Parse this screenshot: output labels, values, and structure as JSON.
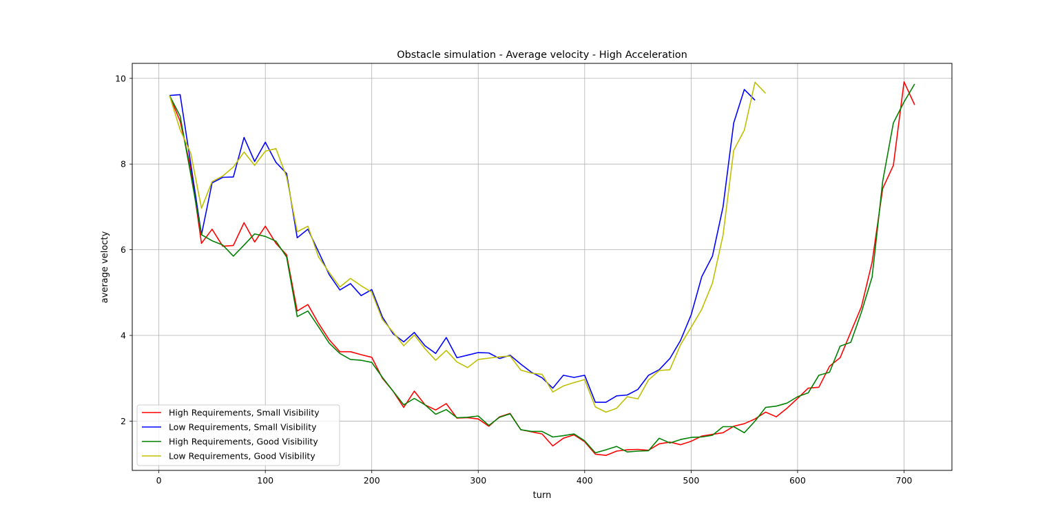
{
  "chart_data": {
    "type": "line",
    "title": "Obstacle simulation - Average velocity - High Acceleration",
    "xlabel": "turn",
    "ylabel": "average velocty",
    "xlim": [
      -25,
      745
    ],
    "ylim": [
      0.85,
      10.35
    ],
    "xticks": [
      0,
      100,
      200,
      300,
      400,
      500,
      600,
      700
    ],
    "yticks": [
      2,
      4,
      6,
      8,
      10
    ],
    "grid": true,
    "legend_position": "lower-left",
    "series": [
      {
        "name": "High Requirements, Small Visibility",
        "color": "#ff0000",
        "x": [
          10,
          20,
          30,
          40,
          50,
          60,
          70,
          80,
          90,
          100,
          110,
          120,
          130,
          140,
          150,
          160,
          170,
          180,
          190,
          200,
          210,
          220,
          230,
          240,
          250,
          260,
          270,
          280,
          290,
          300,
          310,
          320,
          330,
          340,
          350,
          360,
          370,
          380,
          390,
          400,
          410,
          420,
          430,
          440,
          450,
          460,
          470,
          480,
          490,
          500,
          510,
          520,
          530,
          540,
          550,
          560,
          570,
          580,
          590,
          600,
          610,
          620,
          630,
          640,
          650,
          660,
          670,
          680,
          690,
          700,
          710
        ],
        "values": [
          9.6,
          9.0,
          7.9,
          6.15,
          6.48,
          6.08,
          6.1,
          6.63,
          6.18,
          6.55,
          6.15,
          5.88,
          4.57,
          4.72,
          4.28,
          3.9,
          3.62,
          3.62,
          3.55,
          3.49,
          3.0,
          2.7,
          2.32,
          2.7,
          2.38,
          2.26,
          2.41,
          2.07,
          2.08,
          2.05,
          1.88,
          2.1,
          2.18,
          1.8,
          1.75,
          1.7,
          1.42,
          1.6,
          1.68,
          1.52,
          1.23,
          1.2,
          1.3,
          1.33,
          1.34,
          1.32,
          1.47,
          1.51,
          1.45,
          1.53,
          1.65,
          1.69,
          1.73,
          1.88,
          1.94,
          2.05,
          2.21,
          2.1,
          2.3,
          2.53,
          2.77,
          2.79,
          3.28,
          3.48,
          4.08,
          4.67,
          5.71,
          7.43,
          7.97,
          9.92,
          9.38
        ]
      },
      {
        "name": "Low Requirements, Small Visibility",
        "color": "#0000ff",
        "x": [
          10,
          20,
          30,
          40,
          50,
          60,
          70,
          80,
          90,
          100,
          110,
          120,
          130,
          140,
          150,
          160,
          170,
          180,
          190,
          200,
          210,
          220,
          230,
          240,
          250,
          260,
          270,
          280,
          290,
          300,
          310,
          320,
          330,
          340,
          350,
          360,
          370,
          380,
          390,
          400,
          410,
          420,
          430,
          440,
          450,
          460,
          470,
          480,
          490,
          500,
          510,
          520,
          530,
          540,
          550,
          560
        ],
        "values": [
          9.6,
          9.62,
          8.0,
          6.35,
          7.56,
          7.69,
          7.7,
          8.62,
          8.06,
          8.51,
          8.04,
          7.78,
          6.28,
          6.48,
          5.95,
          5.42,
          5.06,
          5.21,
          4.93,
          5.07,
          4.43,
          4.04,
          3.85,
          4.07,
          3.76,
          3.58,
          3.95,
          3.48,
          3.54,
          3.6,
          3.59,
          3.46,
          3.54,
          3.33,
          3.14,
          3.01,
          2.77,
          3.07,
          3.02,
          3.07,
          2.44,
          2.44,
          2.59,
          2.61,
          2.74,
          3.07,
          3.2,
          3.46,
          3.88,
          4.48,
          5.37,
          5.85,
          7.0,
          8.96,
          9.74,
          9.49
        ]
      },
      {
        "name": "High Requirements, Good Visibility",
        "color": "#008000",
        "x": [
          10,
          20,
          30,
          40,
          50,
          60,
          70,
          80,
          90,
          100,
          110,
          120,
          130,
          140,
          150,
          160,
          170,
          180,
          190,
          200,
          210,
          220,
          230,
          240,
          250,
          260,
          270,
          280,
          290,
          300,
          310,
          320,
          330,
          340,
          350,
          360,
          370,
          380,
          390,
          400,
          410,
          420,
          430,
          440,
          450,
          460,
          470,
          480,
          490,
          500,
          510,
          520,
          530,
          540,
          550,
          560,
          570,
          580,
          590,
          600,
          610,
          620,
          630,
          640,
          650,
          660,
          670,
          680,
          690,
          700,
          710
        ],
        "values": [
          9.6,
          9.12,
          7.75,
          6.35,
          6.21,
          6.11,
          5.85,
          6.11,
          6.37,
          6.31,
          6.2,
          5.83,
          4.44,
          4.57,
          4.2,
          3.82,
          3.58,
          3.44,
          3.42,
          3.37,
          3.02,
          2.7,
          2.38,
          2.53,
          2.38,
          2.16,
          2.27,
          2.08,
          2.09,
          2.12,
          1.9,
          2.09,
          2.17,
          1.8,
          1.76,
          1.76,
          1.63,
          1.66,
          1.7,
          1.54,
          1.26,
          1.33,
          1.41,
          1.28,
          1.3,
          1.31,
          1.6,
          1.49,
          1.57,
          1.62,
          1.63,
          1.67,
          1.87,
          1.87,
          1.73,
          2.0,
          2.32,
          2.35,
          2.42,
          2.57,
          2.66,
          3.07,
          3.14,
          3.75,
          3.84,
          4.54,
          5.36,
          7.6,
          8.96,
          9.45,
          9.87
        ]
      },
      {
        "name": "Low Requirements, Good Visibility",
        "color": "#bfbf00",
        "x": [
          10,
          20,
          30,
          40,
          50,
          60,
          70,
          80,
          90,
          100,
          110,
          120,
          130,
          140,
          150,
          160,
          170,
          180,
          190,
          200,
          210,
          220,
          230,
          240,
          250,
          260,
          270,
          280,
          290,
          300,
          310,
          320,
          330,
          340,
          350,
          360,
          370,
          380,
          390,
          400,
          410,
          420,
          430,
          440,
          450,
          460,
          470,
          480,
          490,
          500,
          510,
          520,
          530,
          540,
          550,
          560,
          570
        ],
        "values": [
          9.6,
          8.8,
          8.25,
          6.97,
          7.59,
          7.72,
          7.93,
          8.28,
          7.97,
          8.3,
          8.36,
          7.7,
          6.42,
          6.55,
          5.83,
          5.47,
          5.13,
          5.33,
          5.16,
          5.01,
          4.37,
          4.08,
          3.76,
          4.01,
          3.69,
          3.42,
          3.65,
          3.38,
          3.25,
          3.44,
          3.47,
          3.5,
          3.52,
          3.19,
          3.12,
          3.09,
          2.68,
          2.82,
          2.9,
          2.97,
          2.33,
          2.21,
          2.3,
          2.57,
          2.52,
          2.96,
          3.18,
          3.2,
          3.78,
          4.19,
          4.61,
          5.22,
          6.34,
          8.32,
          8.79,
          9.91,
          9.65
        ]
      }
    ]
  }
}
